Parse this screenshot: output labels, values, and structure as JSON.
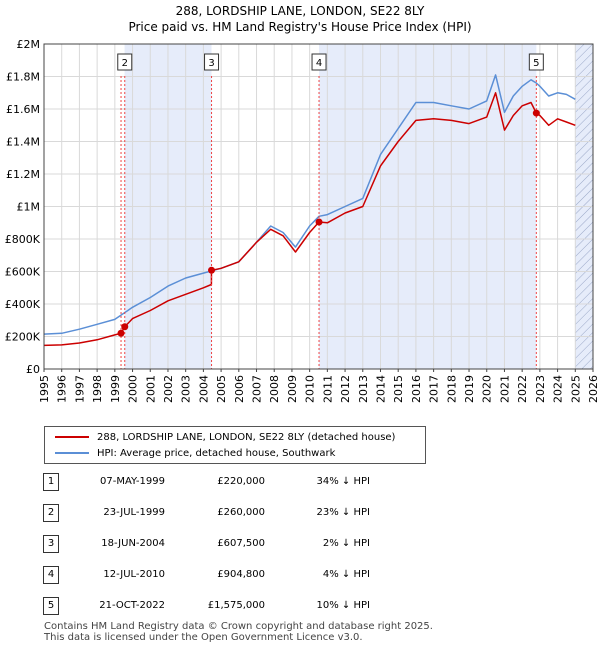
{
  "title_line1": "288, LORDSHIP LANE, LONDON, SE22 8LY",
  "title_line2": "Price paid vs. HM Land Registry's House Price Index (HPI)",
  "legend": {
    "property": "288, LORDSHIP LANE, LONDON, SE22 8LY (detached house)",
    "hpi": "HPI: Average price, detached house, Southwark"
  },
  "colors": {
    "property": "#cc0000",
    "hpi": "#5b8fd6",
    "shade": "#e6ecfa",
    "marker_line": "#ee4444"
  },
  "sales": [
    {
      "id": "1",
      "date": "07-MAY-1999",
      "price": "£220,000",
      "hpi": "34% ↓ HPI"
    },
    {
      "id": "2",
      "date": "23-JUL-1999",
      "price": "£260,000",
      "hpi": "23% ↓ HPI"
    },
    {
      "id": "3",
      "date": "18-JUN-2004",
      "price": "£607,500",
      "hpi": "2% ↓ HPI"
    },
    {
      "id": "4",
      "date": "12-JUL-2010",
      "price": "£904,800",
      "hpi": "4% ↓ HPI"
    },
    {
      "id": "5",
      "date": "21-OCT-2022",
      "price": "£1,575,000",
      "hpi": "10% ↓ HPI"
    }
  ],
  "footer": {
    "line1": "Contains HM Land Registry data © Crown copyright and database right 2025.",
    "line2": "This data is licensed under the Open Government Licence v3.0."
  },
  "chart_data": {
    "type": "line",
    "xlim": [
      1995,
      2026
    ],
    "ylim": [
      0,
      2000000
    ],
    "x_ticks": [
      "1995",
      "1996",
      "1997",
      "1998",
      "1999",
      "2000",
      "2001",
      "2002",
      "2003",
      "2004",
      "2005",
      "2006",
      "2007",
      "2008",
      "2009",
      "2010",
      "2011",
      "2012",
      "2013",
      "2014",
      "2015",
      "2016",
      "2017",
      "2018",
      "2019",
      "2020",
      "2021",
      "2022",
      "2023",
      "2024",
      "2025",
      "2026"
    ],
    "y_ticks": [
      {
        "value": 0,
        "label": "£0"
      },
      {
        "value": 200000,
        "label": "£200K"
      },
      {
        "value": 400000,
        "label": "£400K"
      },
      {
        "value": 600000,
        "label": "£600K"
      },
      {
        "value": 800000,
        "label": "£800K"
      },
      {
        "value": 1000000,
        "label": "£1M"
      },
      {
        "value": 1200000,
        "label": "£1.2M"
      },
      {
        "value": 1400000,
        "label": "£1.4M"
      },
      {
        "value": 1600000,
        "label": "£1.6M"
      },
      {
        "value": 1800000,
        "label": "£1.8M"
      },
      {
        "value": 2000000,
        "label": "£2M"
      }
    ],
    "grid": true,
    "legend_position": "below",
    "shaded_spans": [
      [
        1999.55,
        2004.46
      ],
      [
        2010.53,
        2022.8
      ],
      [
        2025.0,
        2026.0
      ]
    ],
    "hatched_after": 2025.0,
    "sale_points": [
      {
        "id": "1",
        "x": 1999.35,
        "y": 220000
      },
      {
        "id": "2",
        "x": 1999.56,
        "y": 260000
      },
      {
        "id": "3",
        "x": 2004.46,
        "y": 607500
      },
      {
        "id": "4",
        "x": 2010.53,
        "y": 904800
      },
      {
        "id": "5",
        "x": 2022.8,
        "y": 1575000
      }
    ],
    "series": [
      {
        "name": "288, LORDSHIP LANE, LONDON, SE22 8LY (detached house)",
        "points": [
          [
            1995,
            145000
          ],
          [
            1996,
            148000
          ],
          [
            1997,
            160000
          ],
          [
            1998,
            180000
          ],
          [
            1999,
            210000
          ],
          [
            1999.35,
            220000
          ],
          [
            1999.56,
            260000
          ],
          [
            2000,
            310000
          ],
          [
            2001,
            360000
          ],
          [
            2002,
            420000
          ],
          [
            2003,
            460000
          ],
          [
            2004,
            500000
          ],
          [
            2004.45,
            520000
          ],
          [
            2004.46,
            607500
          ],
          [
            2005,
            620000
          ],
          [
            2006,
            660000
          ],
          [
            2007,
            780000
          ],
          [
            2007.8,
            860000
          ],
          [
            2008.5,
            820000
          ],
          [
            2009.2,
            720000
          ],
          [
            2010,
            840000
          ],
          [
            2010.53,
            904800
          ],
          [
            2011,
            900000
          ],
          [
            2012,
            960000
          ],
          [
            2013,
            1000000
          ],
          [
            2014,
            1250000
          ],
          [
            2015,
            1400000
          ],
          [
            2016,
            1530000
          ],
          [
            2017,
            1540000
          ],
          [
            2018,
            1530000
          ],
          [
            2019,
            1510000
          ],
          [
            2020,
            1550000
          ],
          [
            2020.5,
            1700000
          ],
          [
            2021,
            1470000
          ],
          [
            2021.5,
            1560000
          ],
          [
            2022,
            1620000
          ],
          [
            2022.5,
            1640000
          ],
          [
            2022.8,
            1575000
          ],
          [
            2023,
            1560000
          ],
          [
            2023.5,
            1500000
          ],
          [
            2024,
            1540000
          ],
          [
            2024.5,
            1520000
          ],
          [
            2025,
            1500000
          ]
        ]
      },
      {
        "name": "HPI: Average price, detached house, Southwark",
        "points": [
          [
            1995,
            215000
          ],
          [
            1996,
            220000
          ],
          [
            1997,
            245000
          ],
          [
            1998,
            275000
          ],
          [
            1999,
            305000
          ],
          [
            2000,
            380000
          ],
          [
            2001,
            440000
          ],
          [
            2002,
            510000
          ],
          [
            2003,
            560000
          ],
          [
            2004,
            590000
          ],
          [
            2005,
            620000
          ],
          [
            2006,
            660000
          ],
          [
            2007,
            780000
          ],
          [
            2007.8,
            880000
          ],
          [
            2008.5,
            840000
          ],
          [
            2009.2,
            750000
          ],
          [
            2010,
            880000
          ],
          [
            2010.53,
            940000
          ],
          [
            2011,
            950000
          ],
          [
            2012,
            1000000
          ],
          [
            2013,
            1050000
          ],
          [
            2014,
            1320000
          ],
          [
            2015,
            1480000
          ],
          [
            2016,
            1640000
          ],
          [
            2017,
            1640000
          ],
          [
            2018,
            1620000
          ],
          [
            2019,
            1600000
          ],
          [
            2020,
            1650000
          ],
          [
            2020.5,
            1810000
          ],
          [
            2021,
            1580000
          ],
          [
            2021.5,
            1680000
          ],
          [
            2022,
            1740000
          ],
          [
            2022.5,
            1780000
          ],
          [
            2022.8,
            1760000
          ],
          [
            2023,
            1740000
          ],
          [
            2023.5,
            1680000
          ],
          [
            2024,
            1700000
          ],
          [
            2024.5,
            1690000
          ],
          [
            2025,
            1660000
          ]
        ]
      }
    ]
  }
}
